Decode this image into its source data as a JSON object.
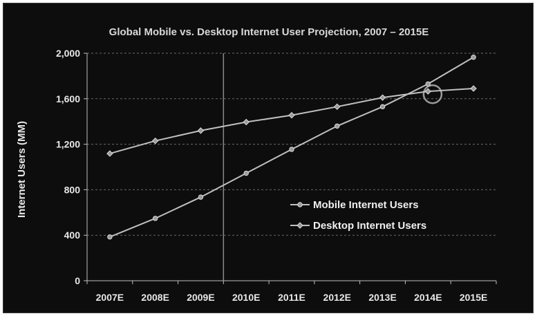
{
  "chart_data": {
    "type": "line",
    "title": "Global Mobile vs. Desktop Internet User Projection, 2007 – 2015E",
    "ylabel": "Internet Users (MM)",
    "xlabel": "",
    "categories": [
      "2007E",
      "2008E",
      "2009E",
      "2010E",
      "2011E",
      "2012E",
      "2013E",
      "2014E",
      "2015E"
    ],
    "ylim": [
      0,
      2000
    ],
    "yticks": [
      0,
      400,
      800,
      1200,
      1600,
      2000
    ],
    "ytick_labels": [
      "0",
      "400",
      "800",
      "1,200",
      "1,600",
      "2,000"
    ],
    "grid": "horizontal dashed",
    "legend_position": "center-right",
    "series": [
      {
        "name": "Mobile Internet Users",
        "marker": "circle",
        "values": [
          385,
          548,
          735,
          945,
          1155,
          1360,
          1530,
          1730,
          1965
        ]
      },
      {
        "name": "Desktop Internet Users",
        "marker": "diamond",
        "values": [
          1118,
          1230,
          1320,
          1395,
          1455,
          1530,
          1610,
          1665,
          1690
        ]
      }
    ],
    "annotations": {
      "vertical_line_at_category_index": 2.5,
      "crossover_circle": {
        "category_index": 7.1,
        "value": 1640
      }
    },
    "colors": {
      "background": "#0d0d0d",
      "line": "#c0c0c0",
      "marker_fill": "#9a9a9a",
      "grid": "#6a6a6a",
      "text": "#e8e8e8"
    }
  }
}
